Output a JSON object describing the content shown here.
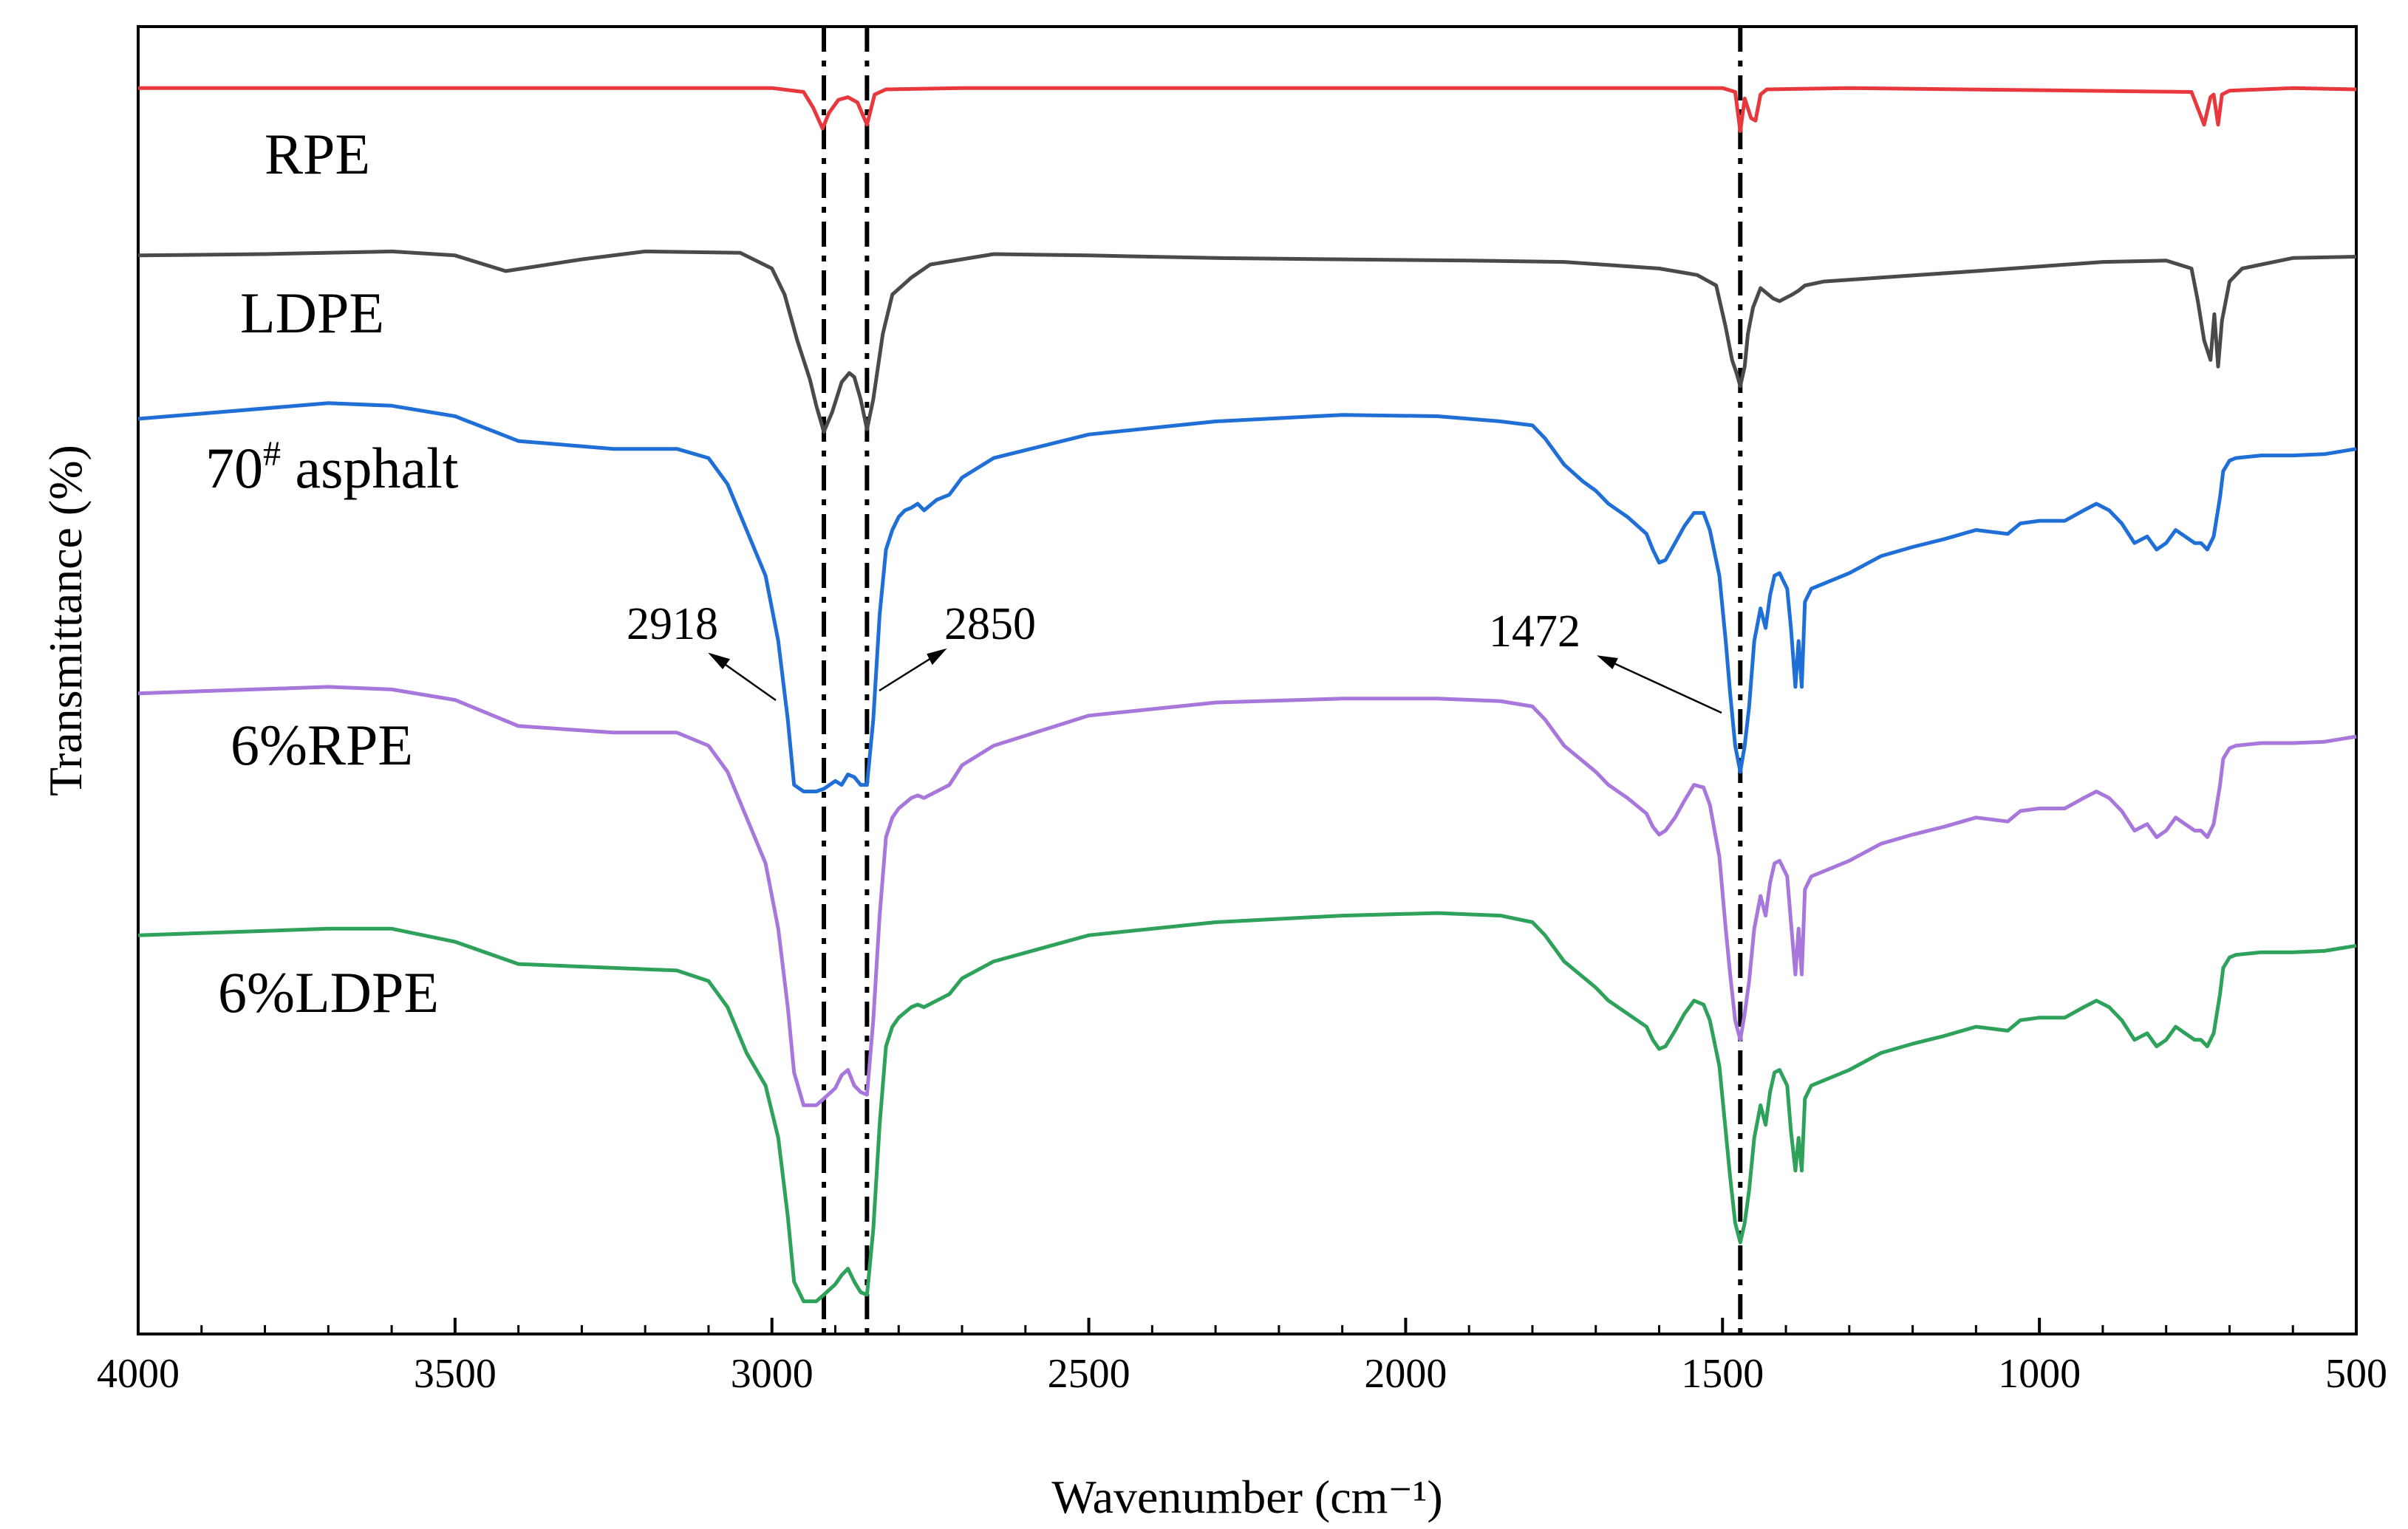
{
  "chart_data": {
    "type": "line",
    "title": "",
    "xlabel": "Wavenumber (cm⁻¹)",
    "ylabel": "Transmittance (%)",
    "xlim": [
      4000,
      500
    ],
    "x_ticks": [
      {
        "value": 4000,
        "label": "4000"
      },
      {
        "value": 3500,
        "label": "3500"
      },
      {
        "value": 3000,
        "label": "3000"
      },
      {
        "value": 2500,
        "label": "2500"
      },
      {
        "value": 2000,
        "label": "2000"
      },
      {
        "value": 1500,
        "label": "1500"
      },
      {
        "value": 1000,
        "label": "1000"
      },
      {
        "value": 500,
        "label": "500"
      }
    ],
    "y_ticks_shown": false,
    "grid": false,
    "legend": "none (inline series labels)",
    "offset_units": "stacked arbitrary transmittance offset, 0 = bottom of plot area, 100 = top",
    "series": [
      {
        "name": "RPE",
        "label": "RPE",
        "color": "#e8383d",
        "x": [
          4000,
          3000,
          2950,
          2935,
          2920,
          2910,
          2895,
          2880,
          2865,
          2850,
          2838,
          2820,
          2700,
          1500,
          1480,
          1472,
          1465,
          1455,
          1448,
          1440,
          1430,
          1300,
          760,
          740,
          730,
          725,
          718,
          712,
          700,
          600,
          500
        ],
        "values": [
          95.3,
          95.3,
          95.0,
          93.8,
          92.2,
          93.4,
          94.4,
          94.6,
          94.2,
          92.5,
          94.8,
          95.2,
          95.3,
          95.3,
          95.0,
          92.0,
          94.5,
          93.0,
          92.8,
          94.8,
          95.2,
          95.3,
          95.0,
          92.5,
          94.6,
          94.8,
          92.5,
          94.8,
          95.1,
          95.3,
          95.2
        ]
      },
      {
        "name": "LDPE",
        "label": "LDPE",
        "color": "#4a4a4a",
        "x": [
          4000,
          3800,
          3600,
          3500,
          3420,
          3300,
          3200,
          3050,
          3000,
          2980,
          2960,
          2940,
          2930,
          2918,
          2905,
          2890,
          2878,
          2870,
          2860,
          2850,
          2840,
          2825,
          2810,
          2780,
          2750,
          2650,
          2500,
          2300,
          2100,
          1900,
          1750,
          1600,
          1540,
          1510,
          1495,
          1485,
          1478,
          1472,
          1465,
          1460,
          1452,
          1440,
          1420,
          1410,
          1390,
          1380,
          1370,
          1340,
          1250,
          1100,
          900,
          800,
          760,
          750,
          740,
          730,
          724,
          718,
          712,
          700,
          680,
          600,
          500
        ],
        "values": [
          82.5,
          82.6,
          82.8,
          82.5,
          81.3,
          82.2,
          82.8,
          82.7,
          81.5,
          79.5,
          76.0,
          73.0,
          71.0,
          69.0,
          70.5,
          72.8,
          73.5,
          73.2,
          71.5,
          69.2,
          71.5,
          76.5,
          79.5,
          80.8,
          81.8,
          82.6,
          82.5,
          82.3,
          82.2,
          82.1,
          82.0,
          81.5,
          81.0,
          80.2,
          77.0,
          74.5,
          73.5,
          72.5,
          74.0,
          76.5,
          78.5,
          80.0,
          79.2,
          79.0,
          79.5,
          79.8,
          80.2,
          80.5,
          80.8,
          81.3,
          82.0,
          82.1,
          81.5,
          79.0,
          76.0,
          74.5,
          78.0,
          74.0,
          77.5,
          80.5,
          81.5,
          82.3,
          82.4
        ]
      },
      {
        "name": "70# asphalt",
        "label_main": "70",
        "label_sup": "#",
        "label_rest": " asphalt",
        "color": "#1f6fd6",
        "x": [
          4000,
          3700,
          3600,
          3500,
          3400,
          3250,
          3150,
          3100,
          3070,
          3040,
          3010,
          2990,
          2975,
          2965,
          2950,
          2930,
          2918,
          2900,
          2890,
          2880,
          2870,
          2860,
          2850,
          2840,
          2830,
          2820,
          2810,
          2800,
          2790,
          2780,
          2770,
          2760,
          2740,
          2720,
          2700,
          2650,
          2500,
          2300,
          2100,
          1950,
          1850,
          1800,
          1780,
          1750,
          1720,
          1700,
          1680,
          1650,
          1620,
          1610,
          1600,
          1590,
          1575,
          1560,
          1545,
          1530,
          1520,
          1505,
          1495,
          1488,
          1480,
          1472,
          1465,
          1458,
          1450,
          1440,
          1432,
          1425,
          1418,
          1410,
          1398,
          1392,
          1385,
          1380,
          1375,
          1370,
          1360,
          1300,
          1250,
          1200,
          1150,
          1100,
          1050,
          1030,
          1000,
          960,
          930,
          910,
          890,
          870,
          850,
          830,
          815,
          800,
          785,
          770,
          755,
          745,
          735,
          725,
          720,
          715,
          710,
          700,
          690,
          650,
          600,
          550,
          500
        ],
        "values": [
          70.0,
          71.2,
          71.0,
          70.2,
          68.3,
          67.7,
          67.7,
          67.0,
          65.0,
          61.5,
          58.0,
          53.0,
          47.0,
          42.0,
          41.5,
          41.5,
          41.7,
          42.3,
          42.0,
          42.8,
          42.6,
          42.0,
          42.0,
          47.0,
          55.0,
          60.0,
          61.5,
          62.5,
          63.0,
          63.2,
          63.5,
          63.0,
          63.8,
          64.2,
          65.5,
          67.0,
          68.8,
          69.8,
          70.3,
          70.2,
          69.8,
          69.5,
          68.5,
          66.5,
          65.2,
          64.5,
          63.5,
          62.5,
          61.2,
          60.0,
          59.0,
          59.2,
          60.5,
          61.8,
          62.8,
          62.8,
          61.5,
          58.0,
          53.0,
          49.0,
          45.0,
          43.0,
          45.0,
          48.0,
          53.0,
          55.5,
          54.0,
          56.5,
          58.0,
          58.2,
          57.0,
          54.0,
          49.5,
          53.0,
          49.5,
          56.0,
          57.0,
          58.2,
          59.5,
          60.2,
          60.8,
          61.5,
          61.2,
          62.0,
          62.2,
          62.2,
          63.0,
          63.5,
          63.0,
          62.0,
          60.5,
          61.0,
          60.0,
          60.5,
          61.5,
          61.0,
          60.5,
          60.5,
          60.0,
          61.0,
          62.5,
          64.0,
          66.0,
          66.8,
          67.0,
          67.2,
          67.2,
          67.3,
          67.7
        ]
      },
      {
        "name": "6%RPE",
        "label": "6%RPE",
        "color": "#a777db",
        "x": [
          4000,
          3700,
          3600,
          3500,
          3400,
          3250,
          3150,
          3100,
          3070,
          3040,
          3010,
          2990,
          2975,
          2965,
          2950,
          2930,
          2918,
          2900,
          2890,
          2880,
          2870,
          2860,
          2850,
          2840,
          2830,
          2820,
          2810,
          2800,
          2790,
          2780,
          2770,
          2760,
          2740,
          2720,
          2700,
          2650,
          2500,
          2300,
          2100,
          1950,
          1850,
          1800,
          1780,
          1750,
          1720,
          1700,
          1680,
          1650,
          1620,
          1610,
          1600,
          1590,
          1575,
          1560,
          1545,
          1530,
          1520,
          1505,
          1495,
          1488,
          1480,
          1472,
          1465,
          1458,
          1450,
          1440,
          1432,
          1425,
          1418,
          1410,
          1398,
          1392,
          1385,
          1380,
          1375,
          1370,
          1360,
          1300,
          1250,
          1200,
          1150,
          1100,
          1050,
          1030,
          1000,
          960,
          930,
          910,
          890,
          870,
          850,
          830,
          815,
          800,
          785,
          770,
          755,
          745,
          735,
          725,
          720,
          715,
          710,
          700,
          690,
          650,
          600,
          550,
          500
        ],
        "values": [
          49.0,
          49.5,
          49.3,
          48.5,
          46.5,
          46.0,
          46.0,
          45.0,
          43.0,
          39.5,
          36.0,
          31.0,
          25.0,
          20.0,
          17.5,
          17.5,
          18.0,
          18.8,
          19.8,
          20.2,
          19.0,
          18.5,
          18.3,
          24.0,
          32.0,
          38.0,
          39.5,
          40.2,
          40.6,
          41.0,
          41.2,
          41.0,
          41.5,
          42.0,
          43.5,
          45.0,
          47.3,
          48.3,
          48.6,
          48.6,
          48.4,
          48.0,
          47.0,
          45.0,
          43.8,
          43.0,
          42.0,
          41.0,
          39.8,
          38.8,
          38.2,
          38.5,
          39.5,
          40.8,
          42.0,
          41.8,
          40.5,
          36.5,
          31.0,
          27.5,
          24.0,
          22.5,
          24.5,
          27.0,
          31.0,
          33.5,
          32.0,
          34.5,
          36.0,
          36.2,
          35.0,
          31.5,
          27.5,
          31.0,
          27.5,
          34.0,
          35.0,
          36.2,
          37.5,
          38.2,
          38.8,
          39.5,
          39.2,
          40.0,
          40.2,
          40.2,
          41.0,
          41.5,
          41.0,
          40.0,
          38.5,
          39.0,
          38.0,
          38.5,
          39.5,
          39.0,
          38.5,
          38.5,
          38.0,
          39.0,
          40.5,
          42.0,
          44.0,
          44.8,
          45.0,
          45.2,
          45.2,
          45.3,
          45.7
        ]
      },
      {
        "name": "6%LDPE",
        "label": "6%LDPE",
        "color": "#2ea15a",
        "x": [
          4000,
          3700,
          3600,
          3500,
          3400,
          3250,
          3150,
          3100,
          3070,
          3040,
          3010,
          2990,
          2975,
          2965,
          2950,
          2930,
          2918,
          2900,
          2890,
          2880,
          2870,
          2860,
          2850,
          2840,
          2830,
          2820,
          2810,
          2800,
          2790,
          2780,
          2770,
          2760,
          2740,
          2720,
          2700,
          2650,
          2500,
          2300,
          2100,
          1950,
          1850,
          1800,
          1780,
          1750,
          1720,
          1700,
          1680,
          1650,
          1620,
          1610,
          1600,
          1590,
          1575,
          1560,
          1545,
          1530,
          1520,
          1505,
          1495,
          1488,
          1480,
          1472,
          1465,
          1458,
          1450,
          1440,
          1432,
          1425,
          1418,
          1410,
          1398,
          1392,
          1385,
          1380,
          1375,
          1370,
          1360,
          1300,
          1250,
          1200,
          1150,
          1100,
          1050,
          1030,
          1000,
          960,
          930,
          910,
          890,
          870,
          850,
          830,
          815,
          800,
          785,
          770,
          755,
          745,
          735,
          725,
          720,
          715,
          710,
          700,
          690,
          650,
          600,
          550,
          500
        ],
        "values": [
          30.5,
          31.0,
          31.0,
          30.0,
          28.3,
          28.0,
          27.8,
          27.0,
          25.0,
          21.5,
          19.0,
          15.0,
          9.0,
          4.0,
          2.5,
          2.5,
          3.0,
          3.8,
          4.5,
          5.0,
          4.0,
          3.2,
          3.0,
          8.0,
          16.0,
          22.0,
          23.5,
          24.2,
          24.6,
          25.0,
          25.2,
          25.0,
          25.5,
          26.0,
          27.2,
          28.5,
          30.5,
          31.5,
          32.0,
          32.2,
          32.0,
          31.5,
          30.5,
          28.5,
          27.3,
          26.5,
          25.5,
          24.5,
          23.5,
          22.5,
          21.8,
          22.0,
          23.2,
          24.5,
          25.5,
          25.2,
          24.0,
          20.5,
          15.5,
          12.0,
          8.5,
          7.0,
          8.5,
          11.0,
          15.0,
          17.5,
          16.0,
          18.5,
          20.0,
          20.2,
          19.0,
          15.5,
          12.5,
          15.0,
          12.5,
          18.0,
          19.0,
          20.2,
          21.5,
          22.2,
          22.8,
          23.5,
          23.2,
          24.0,
          24.2,
          24.2,
          25.0,
          25.5,
          25.0,
          24.0,
          22.5,
          23.0,
          22.0,
          22.5,
          23.5,
          23.0,
          22.5,
          22.5,
          22.0,
          23.0,
          24.5,
          26.0,
          28.0,
          28.8,
          29.0,
          29.2,
          29.2,
          29.3,
          29.7
        ]
      }
    ],
    "reference_lines": [
      {
        "x": 2918,
        "style": "dash-dot"
      },
      {
        "x": 2850,
        "style": "dash-dot"
      },
      {
        "x": 1472,
        "style": "dash-dot"
      }
    ],
    "annotations": [
      {
        "text": "2918",
        "points_to": 2918
      },
      {
        "text": "2850",
        "points_to": 2850
      },
      {
        "text": "1472",
        "points_to": 1472
      }
    ]
  }
}
